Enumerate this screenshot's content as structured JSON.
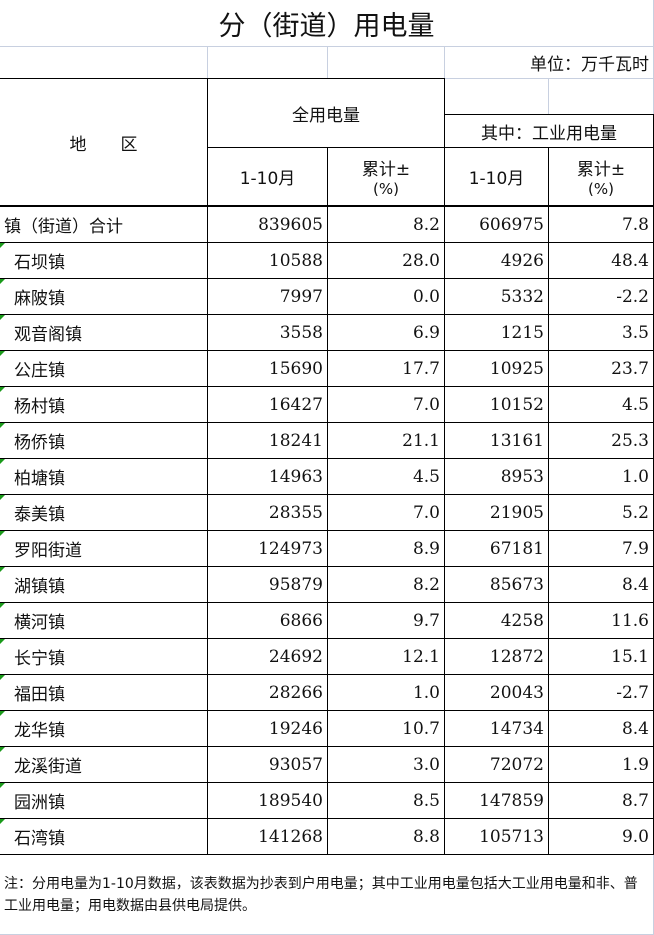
{
  "title": "分（街道）用电量",
  "unit": "单位：万千瓦时",
  "header": {
    "region": "地　　区",
    "total": "全用电量",
    "industrial": "其中：工业用电量",
    "period": "1-10月",
    "growth_line1": "累计±",
    "growth_line2": "(%)"
  },
  "rows": [
    {
      "name": "镇（街道）合计",
      "total": "839605",
      "total_growth": "8.2",
      "ind": "606975",
      "ind_growth": "7.8"
    },
    {
      "name": "石坝镇",
      "total": "10588",
      "total_growth": "28.0",
      "ind": "4926",
      "ind_growth": "48.4"
    },
    {
      "name": "麻陂镇",
      "total": "7997",
      "total_growth": "0.0",
      "ind": "5332",
      "ind_growth": "-2.2"
    },
    {
      "name": "观音阁镇",
      "total": "3558",
      "total_growth": "6.9",
      "ind": "1215",
      "ind_growth": "3.5"
    },
    {
      "name": "公庄镇",
      "total": "15690",
      "total_growth": "17.7",
      "ind": "10925",
      "ind_growth": "23.7"
    },
    {
      "name": "杨村镇",
      "total": "16427",
      "total_growth": "7.0",
      "ind": "10152",
      "ind_growth": "4.5"
    },
    {
      "name": "杨侨镇",
      "total": "18241",
      "total_growth": "21.1",
      "ind": "13161",
      "ind_growth": "25.3"
    },
    {
      "name": "柏塘镇",
      "total": "14963",
      "total_growth": "4.5",
      "ind": "8953",
      "ind_growth": "1.0"
    },
    {
      "name": "泰美镇",
      "total": "28355",
      "total_growth": "7.0",
      "ind": "21905",
      "ind_growth": "5.2"
    },
    {
      "name": "罗阳街道",
      "total": "124973",
      "total_growth": "8.9",
      "ind": "67181",
      "ind_growth": "7.9"
    },
    {
      "name": "湖镇镇",
      "total": "95879",
      "total_growth": "8.2",
      "ind": "85673",
      "ind_growth": "8.4"
    },
    {
      "name": "横河镇",
      "total": "6866",
      "total_growth": "9.7",
      "ind": "4258",
      "ind_growth": "11.6"
    },
    {
      "name": "长宁镇",
      "total": "24692",
      "total_growth": "12.1",
      "ind": "12872",
      "ind_growth": "15.1"
    },
    {
      "name": "福田镇",
      "total": "28266",
      "total_growth": "1.0",
      "ind": "20043",
      "ind_growth": "-2.7"
    },
    {
      "name": "龙华镇",
      "total": "19246",
      "total_growth": "10.7",
      "ind": "14734",
      "ind_growth": "8.4"
    },
    {
      "name": "龙溪街道",
      "total": "93057",
      "total_growth": "3.0",
      "ind": "72072",
      "ind_growth": "1.9"
    },
    {
      "name": "园洲镇",
      "total": "189540",
      "total_growth": "8.5",
      "ind": "147859",
      "ind_growth": "8.7"
    },
    {
      "name": "石湾镇",
      "total": "141268",
      "total_growth": "8.8",
      "ind": "105713",
      "ind_growth": "9.0"
    }
  ],
  "note": "注：分用电量为1-10月数据，该表数据为抄表到户用电量；其中工业用电量包括大工业用电量和非、普工业用电量；用电数据由县供电局提供。"
}
